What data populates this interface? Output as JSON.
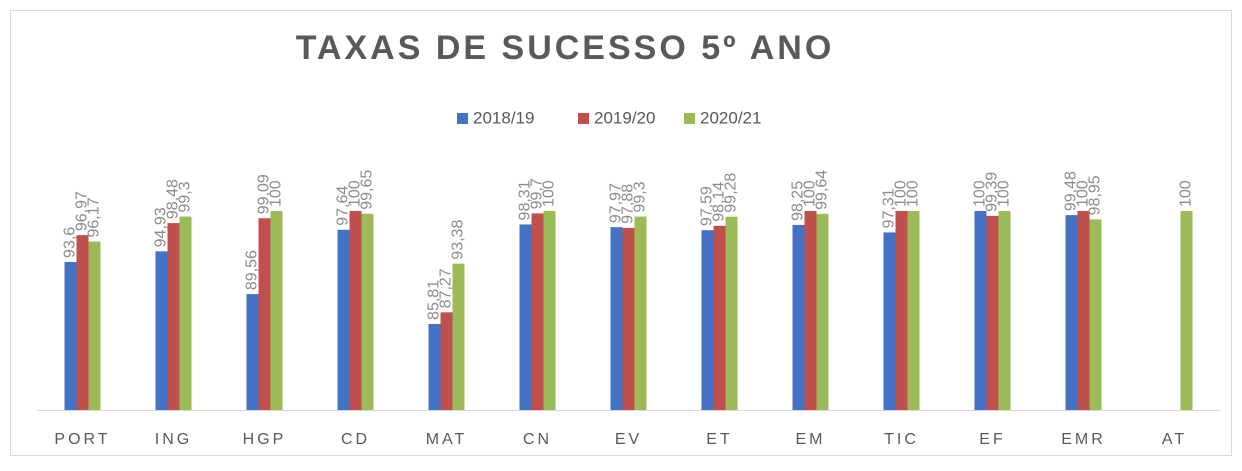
{
  "chart_data": {
    "type": "bar",
    "title": "TAXAS DE SUCESSO 5º ANO",
    "categories": [
      "PORT",
      "ING",
      "HGP",
      "CD",
      "MAT",
      "CN",
      "EV",
      "ET",
      "EM",
      "TIC",
      "EF",
      "EMR",
      "AT"
    ],
    "series": [
      {
        "name": "2018/19",
        "color": "#4472c4",
        "values": [
          93.6,
          94.93,
          89.56,
          97.64,
          85.81,
          98.31,
          97.97,
          97.59,
          98.25,
          97.31,
          100,
          99.48,
          null
        ],
        "value_labels": [
          "93,6",
          "94,93",
          "89,56",
          "97,64",
          "85,81",
          "98,31",
          "97,97",
          "97,59",
          "98,25",
          "97,31",
          "100",
          "99,48",
          null
        ]
      },
      {
        "name": "2019/20",
        "color": "#c0504d",
        "values": [
          96.97,
          98.48,
          99.09,
          100,
          87.27,
          99.7,
          97.88,
          98.14,
          100,
          100,
          99.39,
          100,
          null
        ],
        "value_labels": [
          "96,97",
          "98,48",
          "99,09",
          "100",
          "87,27",
          "99,7",
          "97,88",
          "98,14",
          "100",
          "100",
          "99,39",
          "100",
          null
        ]
      },
      {
        "name": "2020/21",
        "color": "#9bbb59",
        "values": [
          96.17,
          99.3,
          100,
          99.65,
          93.38,
          100,
          99.3,
          99.28,
          99.64,
          100,
          100,
          98.95,
          100
        ],
        "value_labels": [
          "96,17",
          "99,3",
          "100",
          "99,65",
          "93,38",
          "100",
          "99,3",
          "99,28",
          "99,64",
          "100",
          "100",
          "98,95",
          "100"
        ]
      }
    ],
    "ylim": [
      75,
      100
    ],
    "legend": "top"
  }
}
